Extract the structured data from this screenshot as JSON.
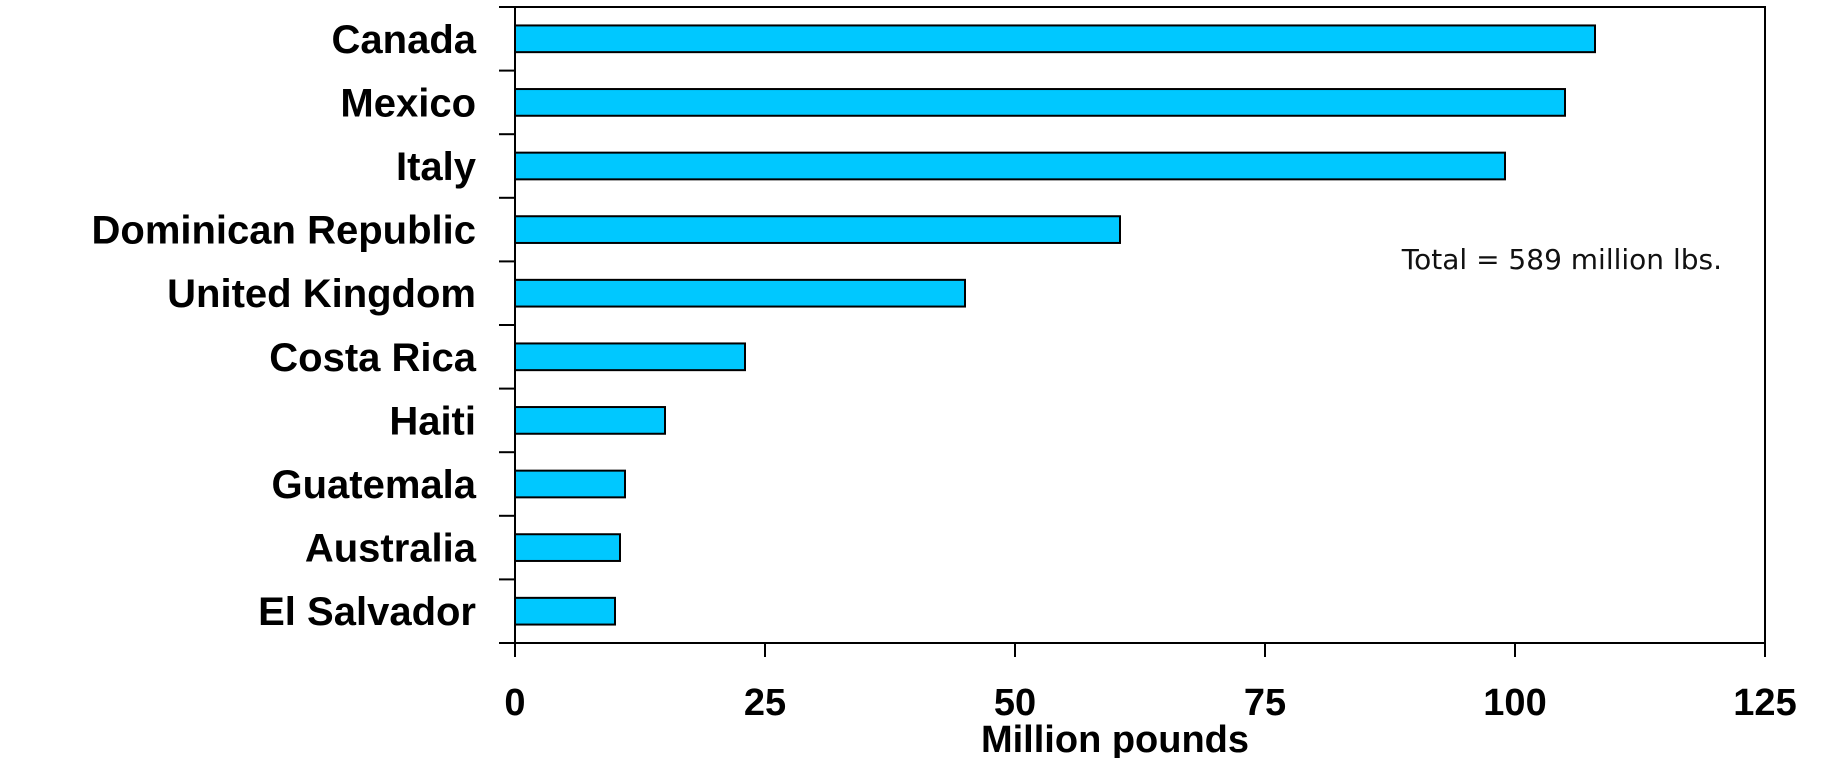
{
  "chart_data": {
    "type": "bar",
    "orientation": "horizontal",
    "categories": [
      "Canada",
      "Mexico",
      "Italy",
      "Dominican Republic",
      "United Kingdom",
      "Costa Rica",
      "Haiti",
      "Guatemala",
      "Australia",
      "El Salvador"
    ],
    "values": [
      108,
      105,
      99,
      60.5,
      45,
      23,
      15,
      11,
      10.5,
      10
    ],
    "xlabel": "Million pounds",
    "ylabel": "",
    "xlim": [
      0,
      125
    ],
    "xticks": [
      "0",
      "25",
      "50",
      "75",
      "100",
      "125"
    ],
    "annotation": "Total = 589 million lbs.",
    "bar_color": "#00c8ff",
    "grid": false,
    "legend": "none"
  }
}
